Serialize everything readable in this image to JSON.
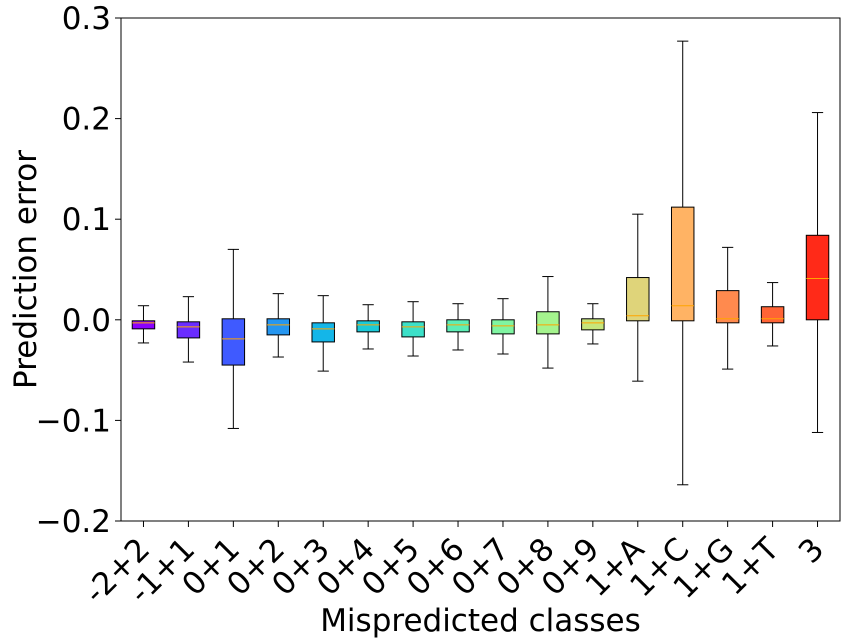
{
  "chart_data": {
    "type": "box",
    "xlabel": "Mispredicted classes",
    "ylabel": "Prediction error",
    "ylim": [
      -0.2,
      0.3
    ],
    "yticks": [
      -0.2,
      -0.1,
      0.0,
      0.1,
      0.2,
      0.3
    ],
    "ytick_labels": [
      "−0.2",
      "−0.1",
      "0.0",
      "0.1",
      "0.2",
      "0.3"
    ],
    "grid": false,
    "categories": [
      "-2+2",
      "-1+1",
      "0+1",
      "0+2",
      "0+3",
      "0+4",
      "0+5",
      "0+6",
      "0+7",
      "0+8",
      "0+9",
      "1+A",
      "1+C",
      "1+G",
      "1+T",
      "3"
    ],
    "boxes": [
      {
        "label": "-2+2",
        "whislo": -0.023,
        "q1": -0.009,
        "med": -0.003,
        "q3": -0.001,
        "whishi": 0.014,
        "color": "#8B00FF"
      },
      {
        "label": "-1+1",
        "whislo": -0.042,
        "q1": -0.018,
        "med": -0.007,
        "q3": -0.002,
        "whishi": 0.023,
        "color": "#6A2CFF"
      },
      {
        "label": "0+1",
        "whislo": -0.108,
        "q1": -0.045,
        "med": -0.019,
        "q3": 0.001,
        "whishi": 0.07,
        "color": "#3F5AFF"
      },
      {
        "label": "0+2",
        "whislo": -0.037,
        "q1": -0.015,
        "med": -0.005,
        "q3": 0.001,
        "whishi": 0.026,
        "color": "#2596F0"
      },
      {
        "label": "0+3",
        "whislo": -0.051,
        "q1": -0.022,
        "med": -0.009,
        "q3": -0.003,
        "whishi": 0.024,
        "color": "#14B6E8"
      },
      {
        "label": "0+4",
        "whislo": -0.029,
        "q1": -0.012,
        "med": -0.005,
        "q3": -0.001,
        "whishi": 0.015,
        "color": "#1CCAD8"
      },
      {
        "label": "0+5",
        "whislo": -0.036,
        "q1": -0.017,
        "med": -0.007,
        "q3": -0.002,
        "whishi": 0.018,
        "color": "#3CE0C8"
      },
      {
        "label": "0+6",
        "whislo": -0.03,
        "q1": -0.012,
        "med": -0.005,
        "q3": 0.0,
        "whishi": 0.016,
        "color": "#5DEEB5"
      },
      {
        "label": "0+7",
        "whislo": -0.034,
        "q1": -0.014,
        "med": -0.006,
        "q3": 0.0,
        "whishi": 0.021,
        "color": "#80F5A2"
      },
      {
        "label": "0+8",
        "whislo": -0.048,
        "q1": -0.014,
        "med": -0.005,
        "q3": 0.008,
        "whishi": 0.043,
        "color": "#A5F48E"
      },
      {
        "label": "0+9",
        "whislo": -0.024,
        "q1": -0.01,
        "med": -0.003,
        "q3": 0.001,
        "whishi": 0.016,
        "color": "#C6E67C"
      },
      {
        "label": "1+A",
        "whislo": -0.061,
        "q1": -0.001,
        "med": 0.004,
        "q3": 0.042,
        "whishi": 0.105,
        "color": "#DFD47A"
      },
      {
        "label": "1+C",
        "whislo": -0.164,
        "q1": -0.001,
        "med": 0.014,
        "q3": 0.112,
        "whishi": 0.277,
        "color": "#FFB364"
      },
      {
        "label": "1+G",
        "whislo": -0.049,
        "q1": -0.003,
        "med": 0.001,
        "q3": 0.029,
        "whishi": 0.072,
        "color": "#FF8A4E"
      },
      {
        "label": "1+T",
        "whislo": -0.026,
        "q1": -0.003,
        "med": 0.001,
        "q3": 0.013,
        "whishi": 0.037,
        "color": "#FF6436"
      },
      {
        "label": "3",
        "whislo": -0.112,
        "q1": 0.0,
        "med": 0.041,
        "q3": 0.084,
        "whishi": 0.206,
        "color": "#FF2A18"
      }
    ],
    "median_color": "#FFA500"
  }
}
